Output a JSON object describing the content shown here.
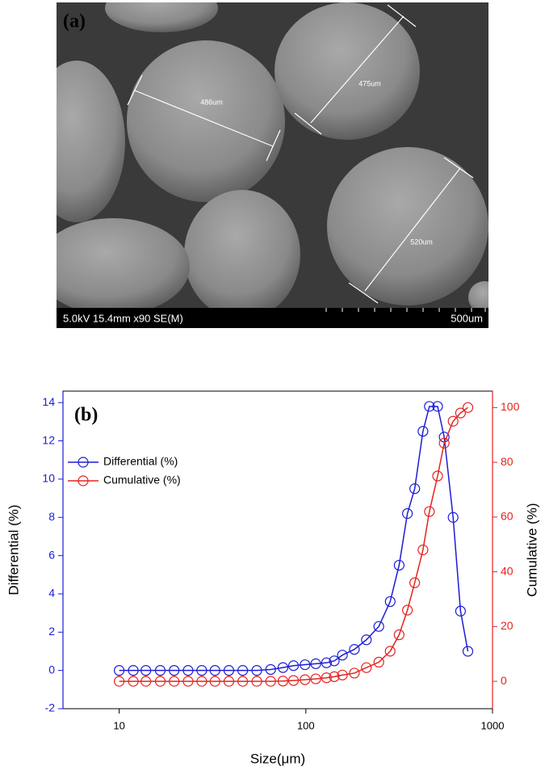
{
  "figure_a": {
    "label": "(a)",
    "measurements": [
      "486um",
      "475um",
      "520um"
    ],
    "info_bar": "5.0kV 15.4mm x90 SE(M)",
    "scale_label": "500um"
  },
  "chart_data": {
    "type": "line",
    "label": "(b)",
    "xlabel": "Size(μm)",
    "ylabel": "Differential (%)",
    "y2label": "Cumulative (%)",
    "x": [
      10,
      11.9,
      13.9,
      16.6,
      19.7,
      23.4,
      27.7,
      32.6,
      38.7,
      45.9,
      54.6,
      64.8,
      75.4,
      85.9,
      99,
      113,
      129,
      142,
      157,
      182,
      211,
      246,
      283,
      316,
      350,
      383,
      424,
      459,
      508,
      551,
      615,
      674,
      738
    ],
    "xscale": "log",
    "xlim": [
      5,
      1000
    ],
    "xticks": [
      10,
      100,
      1000
    ],
    "ylim": [
      -2,
      14.6
    ],
    "yticks": [
      -2,
      0,
      2,
      4,
      6,
      8,
      10,
      12,
      14
    ],
    "y2lim": [
      -10,
      106
    ],
    "y2ticks": [
      0,
      20,
      40,
      60,
      80,
      100
    ],
    "legend": "upper left",
    "series": [
      {
        "name": "Differential (%)",
        "color": "#1c1cd6",
        "values": [
          0,
          0,
          0,
          0,
          0,
          0,
          0,
          0,
          0,
          0,
          0,
          0.05,
          0.15,
          0.25,
          0.3,
          0.35,
          0.4,
          0.5,
          0.8,
          1.1,
          1.6,
          2.3,
          3.6,
          5.5,
          8.2,
          9.5,
          12.5,
          13.8,
          13.8,
          12.2,
          8.0,
          3.1,
          1.0
        ]
      },
      {
        "name": "Cumulative (%)",
        "color": "#e6221e",
        "axis": "y2",
        "values": [
          0,
          0,
          0,
          0,
          0,
          0,
          0,
          0,
          0,
          0,
          0,
          0,
          0.1,
          0.3,
          0.6,
          0.9,
          1.3,
          1.7,
          2.3,
          3,
          5,
          7,
          11,
          17,
          26,
          36,
          48,
          62,
          75,
          87,
          95,
          98,
          100
        ]
      }
    ]
  }
}
